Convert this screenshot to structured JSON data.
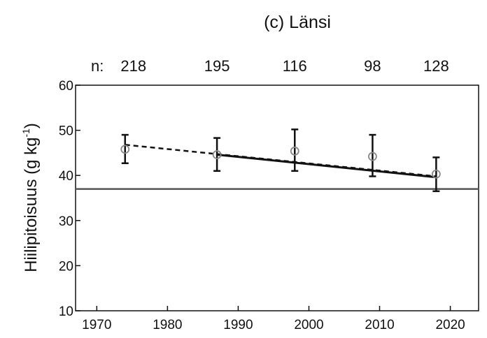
{
  "chart_data": {
    "type": "scatter",
    "title": "(c) Länsi",
    "ylabel": "Hiilipitoisuus (g kg",
    "ylabel_sup": "-1",
    "ylabel_close": ")",
    "xlabel": "",
    "n_prefix": "n:",
    "xlim": [
      1967,
      2024
    ],
    "ylim": [
      10,
      60
    ],
    "x_ticks": [
      1970,
      1980,
      1990,
      2000,
      2010,
      2020
    ],
    "y_ticks": [
      10,
      20,
      30,
      40,
      50,
      60
    ],
    "series": [
      {
        "x": [
          1974,
          1987,
          1998,
          2009,
          2018
        ],
        "y": [
          45.8,
          44.6,
          45.4,
          44.2,
          40.3
        ],
        "err_low": [
          42.7,
          41.0,
          41.0,
          39.8,
          36.5
        ],
        "err_high": [
          49.0,
          48.3,
          50.2,
          49.0,
          44.0
        ],
        "n": [
          "218",
          "195",
          "116",
          "98",
          "128"
        ]
      }
    ],
    "trend_dashed": {
      "x": [
        1974,
        2018
      ],
      "y": [
        46.8,
        39.8
      ]
    },
    "trend_solid": {
      "x": [
        1987,
        2018
      ],
      "y": [
        44.6,
        39.6
      ]
    },
    "reference_line": {
      "y": 37
    },
    "colors": {
      "axis": "#111111",
      "marker": "#888888",
      "reference": "#555555"
    }
  }
}
